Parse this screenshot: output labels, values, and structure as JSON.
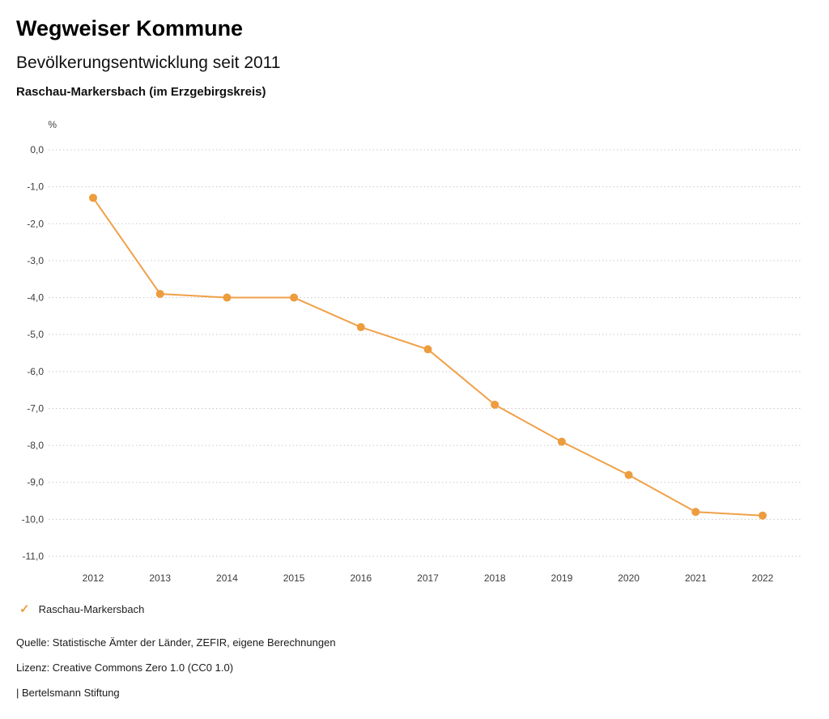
{
  "header": {
    "brand": "Wegweiser Kommune",
    "title": "Bevölkerungsentwicklung seit 2011",
    "subtitle": "Raschau-Markersbach (im Erzgebirgskreis)"
  },
  "chart_data": {
    "type": "line",
    "title": "Bevölkerungsentwicklung seit 2011",
    "unit_label": "%",
    "categories": [
      "2012",
      "2013",
      "2014",
      "2015",
      "2016",
      "2017",
      "2018",
      "2019",
      "2020",
      "2021",
      "2022"
    ],
    "series": [
      {
        "name": "Raschau-Markersbach",
        "values": [
          -1.3,
          -3.9,
          -4.0,
          -4.0,
          -4.8,
          -5.4,
          -6.9,
          -7.9,
          -8.8,
          -9.8,
          -9.9
        ]
      }
    ],
    "ylim": [
      -11,
      0
    ],
    "y_ticks": [
      0,
      -1,
      -2,
      -3,
      -4,
      -5,
      -6,
      -7,
      -8,
      -9,
      -10,
      -11
    ],
    "y_tick_labels": [
      "0,0",
      "-1,0",
      "-2,0",
      "-3,0",
      "-4,0",
      "-5,0",
      "-6,0",
      "-7,0",
      "-8,0",
      "-9,0",
      "-10,0",
      "-11,0"
    ],
    "grid": true,
    "grid_color": "#c9c9c9",
    "line_color": "#F0A048",
    "marker_color": "#ED9C3E",
    "legend_position": "bottom"
  },
  "legend": {
    "check_icon": "✓",
    "label": "Raschau-Markersbach"
  },
  "footer": {
    "source": "Quelle: Statistische Ämter der Länder, ZEFIR, eigene Berechnungen",
    "license": "Lizenz: Creative Commons Zero 1.0 (CC0 1.0)",
    "attribution": "| Bertelsmann Stiftung"
  }
}
